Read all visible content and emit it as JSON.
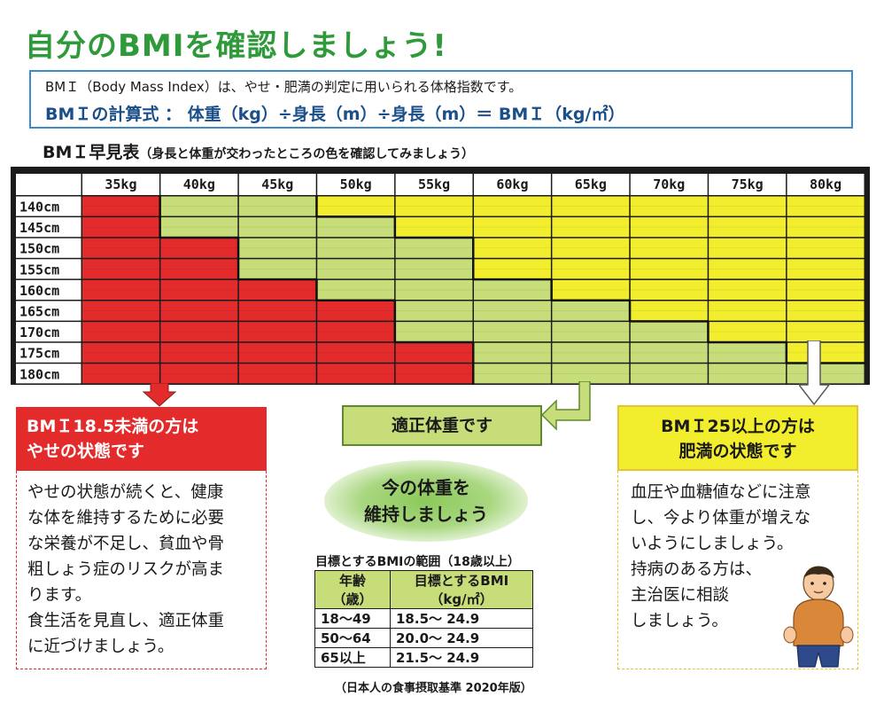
{
  "title": "自分のBMIを確認しましょう!",
  "info": {
    "line1": "BMＩ（Body Mass Index）は、やせ・肥満の判定に用いられる体格指数です。",
    "line2": "BMＩの計算式 ： 体重（kg）÷身長（m）÷身長（m）＝ BMＩ（kg/㎡）"
  },
  "chart_title": "BMＩ早見表",
  "chart_subtitle": "（身長と体重が交わったところの色を確認してみましょう）",
  "chart_data": {
    "type": "heatmap",
    "columns": [
      "35kg",
      "40kg",
      "45kg",
      "50kg",
      "55kg",
      "60kg",
      "65kg",
      "70kg",
      "75kg",
      "80kg"
    ],
    "rows": [
      "140cm",
      "145cm",
      "150cm",
      "155cm",
      "160cm",
      "165cm",
      "170cm",
      "175cm",
      "180cm"
    ],
    "weights": [
      35,
      40,
      45,
      50,
      55,
      60,
      65,
      70,
      75,
      80
    ],
    "heights": [
      140,
      145,
      150,
      155,
      160,
      165,
      170,
      175,
      180
    ],
    "categories": [
      "underweight",
      "normal",
      "obese"
    ],
    "cells": [
      [
        "underweight",
        "normal",
        "normal",
        "obese",
        "obese",
        "obese",
        "obese",
        "obese",
        "obese",
        "obese"
      ],
      [
        "underweight",
        "normal",
        "normal",
        "normal",
        "obese",
        "obese",
        "obese",
        "obese",
        "obese",
        "obese"
      ],
      [
        "underweight",
        "underweight",
        "normal",
        "normal",
        "normal",
        "obese",
        "obese",
        "obese",
        "obese",
        "obese"
      ],
      [
        "underweight",
        "underweight",
        "normal",
        "normal",
        "normal",
        "obese",
        "obese",
        "obese",
        "obese",
        "obese"
      ],
      [
        "underweight",
        "underweight",
        "underweight",
        "normal",
        "normal",
        "normal",
        "obese",
        "obese",
        "obese",
        "obese"
      ],
      [
        "underweight",
        "underweight",
        "underweight",
        "underweight",
        "normal",
        "normal",
        "normal",
        "obese",
        "obese",
        "obese"
      ],
      [
        "underweight",
        "underweight",
        "underweight",
        "underweight",
        "normal",
        "normal",
        "normal",
        "normal",
        "obese",
        "obese"
      ],
      [
        "underweight",
        "underweight",
        "underweight",
        "underweight",
        "underweight",
        "normal",
        "normal",
        "normal",
        "normal",
        "obese"
      ],
      [
        "underweight",
        "underweight",
        "underweight",
        "underweight",
        "underweight",
        "normal",
        "normal",
        "normal",
        "normal",
        "normal"
      ]
    ],
    "colors": {
      "underweight": "#e32b2b",
      "normal": "#c6dd7a",
      "obese": "#f2ee2d"
    }
  },
  "under": {
    "heading_line1": "BMＩ18.5未満の方は",
    "heading_line2": "やせの状態です",
    "body": [
      "やせの状態が続くと、健康",
      "な体を維持するために必要",
      "な栄養が不足し、貧血や骨",
      "粗しょう症のリスクが高ま",
      "ります。",
      "食生活を見直し、適正体重",
      "に近づけましょう。"
    ]
  },
  "normal": {
    "heading": "適正体重です",
    "bubble_line1": "今の体重を",
    "bubble_line2": "維持しましょう"
  },
  "over": {
    "heading_line1": "BMＩ25以上の方は",
    "heading_line2": "肥満の状態です",
    "body": [
      "血圧や血糖値などに注意",
      "し、今より体重が増えな",
      "いようにしましょう。",
      "持病のある方は、",
      "主治医に相談",
      "しましょう。"
    ]
  },
  "target": {
    "caption": "目標とするBMIの範囲（18歳以上）",
    "col1_line1": "年齢",
    "col1_line2": "（歳）",
    "col2_line1": "目標とするBMI",
    "col2_line2": "（kg/㎡）",
    "rows": [
      {
        "age": "18～49",
        "bmi": "18.5～ 24.9"
      },
      {
        "age": "50～64",
        "bmi": "20.0～ 24.9"
      },
      {
        "age": "65以上",
        "bmi": "21.5～ 24.9"
      }
    ]
  },
  "source": "（日本人の食事摂取基準 2020年版）"
}
